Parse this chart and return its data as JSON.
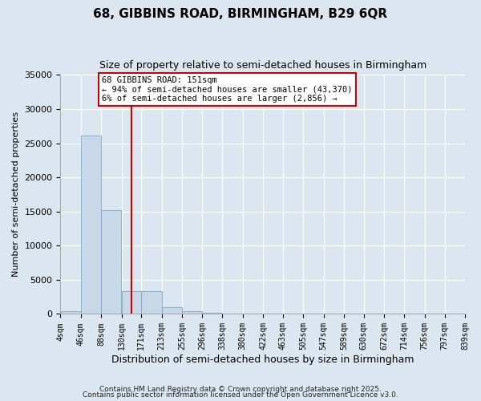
{
  "title": "68, GIBBINS ROAD, BIRMINGHAM, B29 6QR",
  "subtitle": "Size of property relative to semi-detached houses in Birmingham",
  "xlabel": "Distribution of semi-detached houses by size in Birmingham",
  "ylabel": "Number of semi-detached properties",
  "bar_color": "#c8d8e8",
  "bar_edge_color": "#7aaacc",
  "background_color": "#dce6f0",
  "grid_color": "#ffffff",
  "property_size": 151,
  "vline_color": "#cc0000",
  "annotation_line1": "68 GIBBINS ROAD: 151sqm",
  "annotation_line2": "← 94% of semi-detached houses are smaller (43,370)",
  "annotation_line3": "6% of semi-detached houses are larger (2,856) →",
  "annotation_box_color": "#ffffff",
  "annotation_box_edge_color": "#cc0000",
  "footer_text1": "Contains HM Land Registry data © Crown copyright and database right 2025.",
  "footer_text2": "Contains public sector information licensed under the Open Government Licence v3.0.",
  "bin_edges": [
    4,
    46,
    88,
    130,
    171,
    213,
    255,
    296,
    338,
    380,
    422,
    463,
    505,
    547,
    589,
    630,
    672,
    714,
    756,
    797,
    839
  ],
  "bin_labels": [
    "4sqm",
    "46sqm",
    "88sqm",
    "130sqm",
    "171sqm",
    "213sqm",
    "255sqm",
    "296sqm",
    "338sqm",
    "380sqm",
    "422sqm",
    "463sqm",
    "505sqm",
    "547sqm",
    "589sqm",
    "630sqm",
    "672sqm",
    "714sqm",
    "756sqm",
    "797sqm",
    "839sqm"
  ],
  "bar_heights": [
    350,
    26100,
    15200,
    3350,
    3350,
    1000,
    450,
    150,
    50,
    20,
    10,
    5,
    2,
    1,
    0,
    0,
    0,
    0,
    0,
    0
  ],
  "ylim": [
    0,
    35000
  ],
  "yticks": [
    0,
    5000,
    10000,
    15000,
    20000,
    25000,
    30000,
    35000
  ]
}
